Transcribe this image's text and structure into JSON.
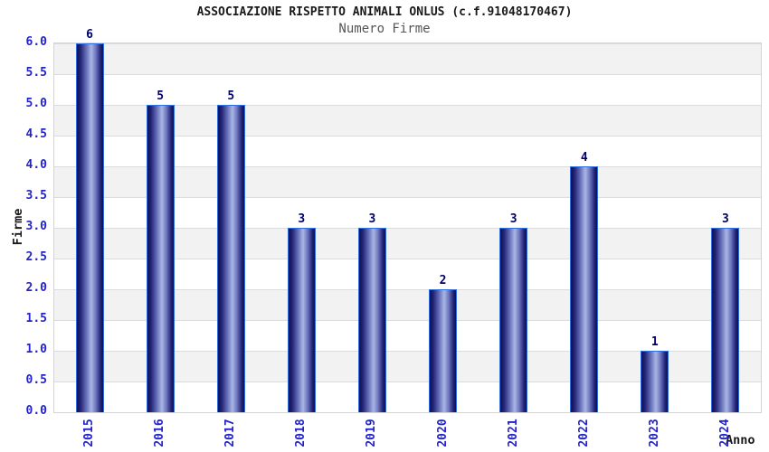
{
  "header": {
    "title": "ASSOCIAZIONE RISPETTO ANIMALI ONLUS (c.f.91048170467)",
    "subtitle": "Numero Firme"
  },
  "chart_data": {
    "type": "bar",
    "title": "ASSOCIAZIONE RISPETTO ANIMALI ONLUS (c.f.91048170467)",
    "subtitle": "Numero Firme",
    "categories": [
      "2015",
      "2016",
      "2017",
      "2018",
      "2019",
      "2020",
      "2021",
      "2022",
      "2023",
      "2024"
    ],
    "values": [
      6,
      5,
      5,
      3,
      3,
      2,
      3,
      4,
      1,
      3
    ],
    "xlabel": "Anno",
    "ylabel": "Firme",
    "ylim": [
      0,
      6
    ],
    "yticks": [
      "0.0",
      "0.5",
      "1.0",
      "1.5",
      "2.0",
      "2.5",
      "3.0",
      "3.5",
      "4.0",
      "4.5",
      "5.0",
      "5.5",
      "6.0"
    ],
    "grid": true,
    "legend": null,
    "colors": {
      "bar_dark": "#10104d",
      "bar_mid": "#242479",
      "bar_light": "#aab6e6",
      "bar_border": "#2e6fe0",
      "tick_label": "#2222cc",
      "value_label": "#00006b",
      "band_gray": "#f2f2f2",
      "band_white": "#ffffff",
      "grid_line": "#dcdcdc",
      "plot_border": "#d4d4d4",
      "title_color": "#1a1a1a",
      "subtitle_color": "#555555",
      "axis_label_color": "#1a1a1a"
    }
  }
}
